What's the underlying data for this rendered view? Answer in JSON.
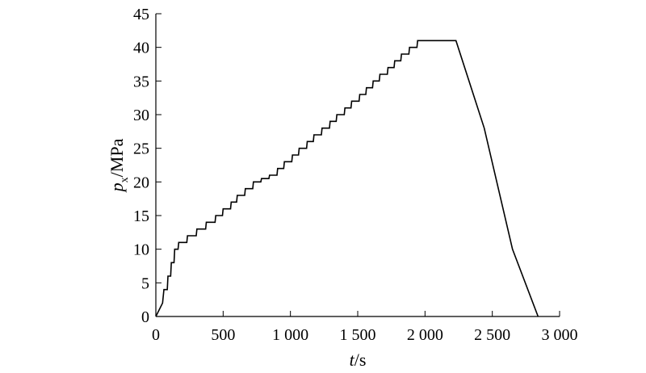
{
  "chart_data": {
    "type": "line",
    "xlabel": {
      "var": "t",
      "unit": "/s"
    },
    "ylabel": {
      "var": "p",
      "sub": "x",
      "unit": "/MPa"
    },
    "xlim": [
      0,
      3000
    ],
    "ylim": [
      0,
      45
    ],
    "xticks": [
      0,
      500,
      1000,
      1500,
      2000,
      2500,
      3000
    ],
    "xtick_labels": [
      "0",
      "500",
      "1 000",
      "1 500",
      "2 000",
      "2 500",
      "3 000"
    ],
    "yticks": [
      0,
      5,
      10,
      15,
      20,
      25,
      30,
      35,
      40,
      45
    ],
    "ytick_labels": [
      "0",
      "5",
      "10",
      "15",
      "20",
      "25",
      "30",
      "35",
      "40",
      "45"
    ],
    "grid": false,
    "legend": "none",
    "series": [
      {
        "values": [
          [
            0,
            0
          ],
          [
            50,
            2
          ],
          [
            60,
            4
          ],
          [
            85,
            4
          ],
          [
            90,
            6
          ],
          [
            110,
            6
          ],
          [
            115,
            8
          ],
          [
            135,
            8
          ],
          [
            140,
            10
          ],
          [
            165,
            10
          ],
          [
            170,
            11
          ],
          [
            230,
            11
          ],
          [
            235,
            12
          ],
          [
            300,
            12
          ],
          [
            305,
            13
          ],
          [
            370,
            13
          ],
          [
            375,
            14
          ],
          [
            440,
            14
          ],
          [
            445,
            15
          ],
          [
            495,
            15
          ],
          [
            500,
            16
          ],
          [
            555,
            16
          ],
          [
            560,
            17
          ],
          [
            600,
            17
          ],
          [
            605,
            18
          ],
          [
            660,
            18
          ],
          [
            665,
            19
          ],
          [
            720,
            19
          ],
          [
            725,
            20
          ],
          [
            780,
            20
          ],
          [
            785,
            20.5
          ],
          [
            840,
            20.5
          ],
          [
            845,
            21
          ],
          [
            900,
            21
          ],
          [
            905,
            22
          ],
          [
            950,
            22
          ],
          [
            955,
            23
          ],
          [
            1010,
            23
          ],
          [
            1015,
            24
          ],
          [
            1060,
            24
          ],
          [
            1065,
            25
          ],
          [
            1120,
            25
          ],
          [
            1125,
            26
          ],
          [
            1170,
            26
          ],
          [
            1175,
            27
          ],
          [
            1230,
            27
          ],
          [
            1235,
            28
          ],
          [
            1290,
            28
          ],
          [
            1295,
            29
          ],
          [
            1340,
            29
          ],
          [
            1345,
            30
          ],
          [
            1400,
            30
          ],
          [
            1405,
            31
          ],
          [
            1450,
            31
          ],
          [
            1455,
            32
          ],
          [
            1510,
            32
          ],
          [
            1515,
            33
          ],
          [
            1560,
            33
          ],
          [
            1565,
            34
          ],
          [
            1610,
            34
          ],
          [
            1615,
            35
          ],
          [
            1660,
            35
          ],
          [
            1665,
            36
          ],
          [
            1720,
            36
          ],
          [
            1725,
            37
          ],
          [
            1770,
            37
          ],
          [
            1775,
            38
          ],
          [
            1820,
            38
          ],
          [
            1825,
            39
          ],
          [
            1880,
            39
          ],
          [
            1885,
            40
          ],
          [
            1940,
            40
          ],
          [
            1945,
            41
          ],
          [
            2230,
            41
          ],
          [
            2440,
            28
          ],
          [
            2650,
            10
          ],
          [
            2840,
            0
          ]
        ]
      }
    ]
  }
}
